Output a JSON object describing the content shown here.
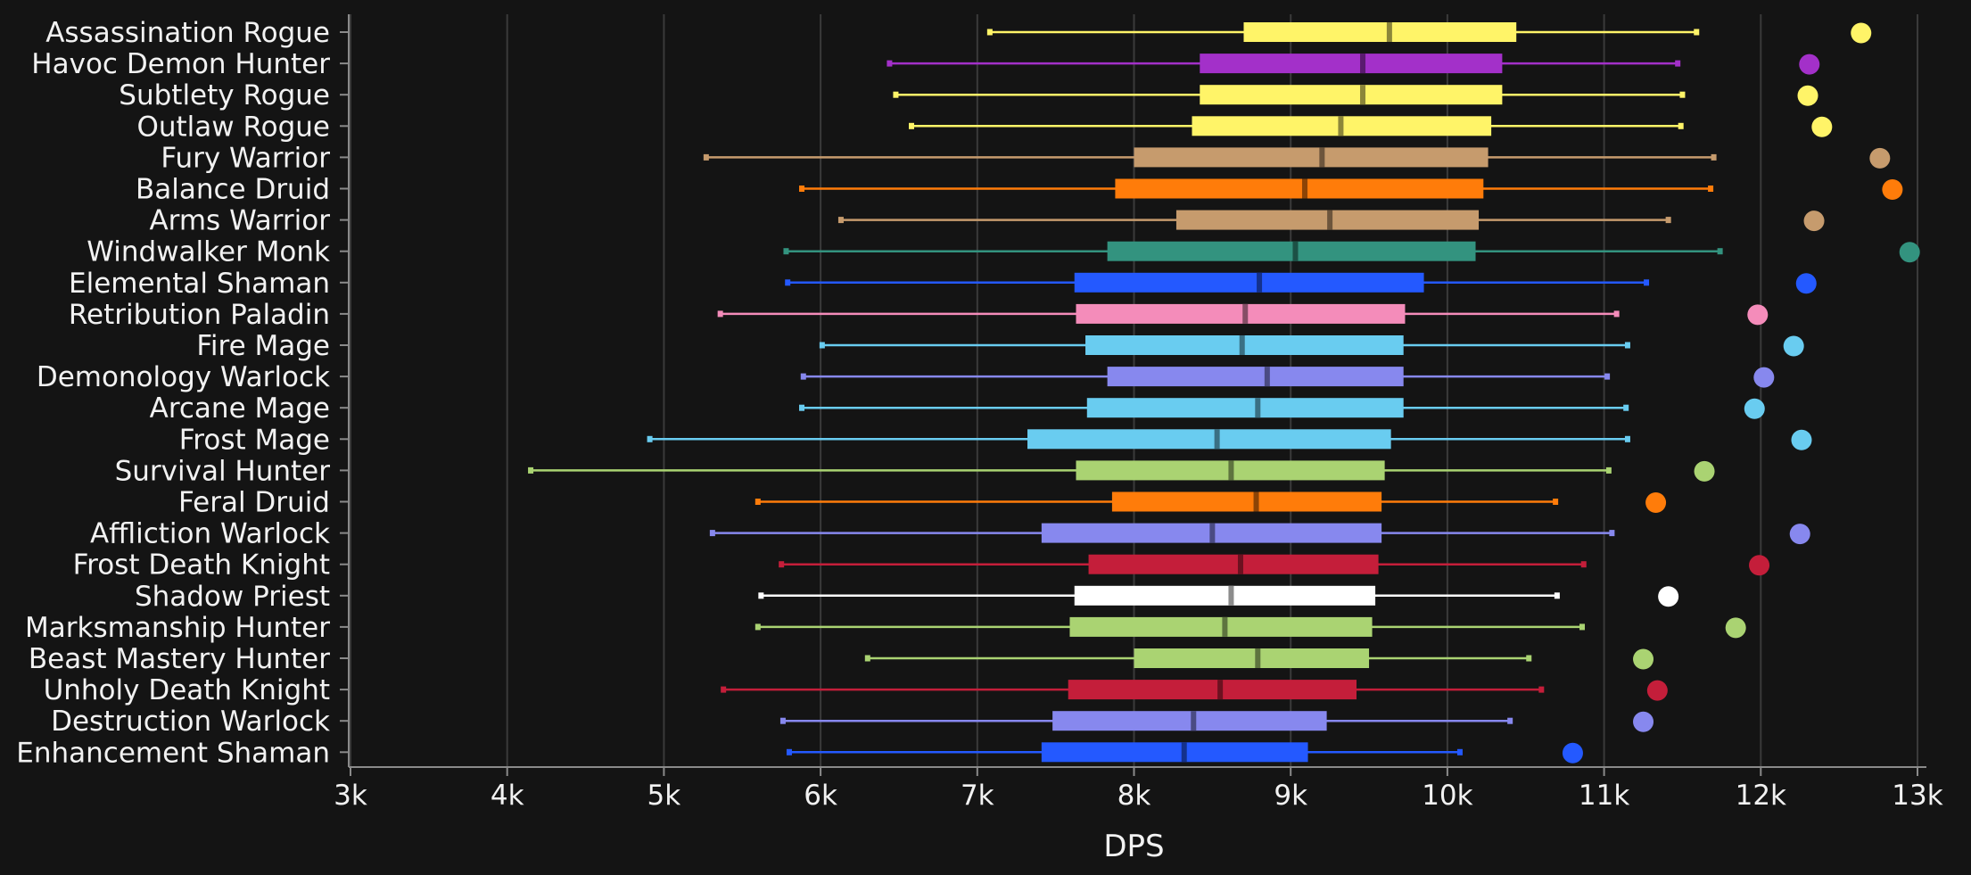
{
  "chart_data": {
    "type": "box",
    "xlabel": "DPS",
    "xlim": [
      3000,
      13000
    ],
    "x_ticks": [
      3000,
      4000,
      5000,
      6000,
      7000,
      8000,
      9000,
      10000,
      11000,
      12000,
      13000
    ],
    "x_tick_labels": [
      "3k",
      "4k",
      "5k",
      "6k",
      "7k",
      "8k",
      "9k",
      "10k",
      "11k",
      "12k",
      "13k"
    ],
    "grid": "vertical",
    "series": [
      {
        "name": "Assassination Rogue",
        "color": "#FFF468",
        "min": 7080,
        "q1": 8700,
        "median": 9630,
        "q3": 10440,
        "max": 11590,
        "outlier": 12640
      },
      {
        "name": "Havoc Demon Hunter",
        "color": "#A330C9",
        "min": 6440,
        "q1": 8420,
        "median": 9460,
        "q3": 10350,
        "max": 11470,
        "outlier": 12310
      },
      {
        "name": "Subtlety Rogue",
        "color": "#FFF468",
        "min": 6480,
        "q1": 8420,
        "median": 9460,
        "q3": 10350,
        "max": 11500,
        "outlier": 12300
      },
      {
        "name": "Outlaw Rogue",
        "color": "#FFF468",
        "min": 6580,
        "q1": 8370,
        "median": 9320,
        "q3": 10280,
        "max": 11490,
        "outlier": 12390
      },
      {
        "name": "Fury Warrior",
        "color": "#C69B6D",
        "min": 5270,
        "q1": 8000,
        "median": 9200,
        "q3": 10260,
        "max": 11700,
        "outlier": 12760
      },
      {
        "name": "Balance Druid",
        "color": "#FF7C0A",
        "min": 5880,
        "q1": 7880,
        "median": 9090,
        "q3": 10230,
        "max": 11680,
        "outlier": 12840
      },
      {
        "name": "Arms Warrior",
        "color": "#C69B6D",
        "min": 6130,
        "q1": 8270,
        "median": 9250,
        "q3": 10200,
        "max": 11410,
        "outlier": 12340
      },
      {
        "name": "Windwalker Monk",
        "color": "#33937F",
        "min": 5780,
        "q1": 7830,
        "median": 9030,
        "q3": 10180,
        "max": 11740,
        "outlier": 12950
      },
      {
        "name": "Elemental Shaman",
        "color": "#2459FF",
        "min": 5790,
        "q1": 7620,
        "median": 8800,
        "q3": 9850,
        "max": 11270,
        "outlier": 12290
      },
      {
        "name": "Retribution Paladin",
        "color": "#F48CBA",
        "min": 5360,
        "q1": 7630,
        "median": 8710,
        "q3": 9730,
        "max": 11080,
        "outlier": 11980
      },
      {
        "name": "Fire Mage",
        "color": "#69CCF0",
        "min": 6010,
        "q1": 7690,
        "median": 8690,
        "q3": 9720,
        "max": 11150,
        "outlier": 12210
      },
      {
        "name": "Demonology Warlock",
        "color": "#8788EE",
        "min": 5890,
        "q1": 7830,
        "median": 8850,
        "q3": 9720,
        "max": 11020,
        "outlier": 12020
      },
      {
        "name": "Arcane Mage",
        "color": "#69CCF0",
        "min": 5880,
        "q1": 7700,
        "median": 8790,
        "q3": 9720,
        "max": 11140,
        "outlier": 11960
      },
      {
        "name": "Frost Mage",
        "color": "#69CCF0",
        "min": 4910,
        "q1": 7320,
        "median": 8530,
        "q3": 9640,
        "max": 11150,
        "outlier": 12260
      },
      {
        "name": "Survival Hunter",
        "color": "#AAD372",
        "min": 4150,
        "q1": 7630,
        "median": 8620,
        "q3": 9600,
        "max": 11030,
        "outlier": 11640
      },
      {
        "name": "Feral Druid",
        "color": "#FF7C0A",
        "min": 5600,
        "q1": 7860,
        "median": 8780,
        "q3": 9580,
        "max": 10690,
        "outlier": 11330
      },
      {
        "name": "Affliction Warlock",
        "color": "#8788EE",
        "min": 5310,
        "q1": 7410,
        "median": 8500,
        "q3": 9580,
        "max": 11050,
        "outlier": 12250
      },
      {
        "name": "Frost Death Knight",
        "color": "#C41E3A",
        "min": 5750,
        "q1": 7710,
        "median": 8680,
        "q3": 9560,
        "max": 10870,
        "outlier": 11990
      },
      {
        "name": "Shadow Priest",
        "color": "#FFFFFF",
        "min": 5620,
        "q1": 7620,
        "median": 8620,
        "q3": 9540,
        "max": 10700,
        "outlier": 11410
      },
      {
        "name": "Marksmanship Hunter",
        "color": "#AAD372",
        "min": 5600,
        "q1": 7590,
        "median": 8580,
        "q3": 9520,
        "max": 10860,
        "outlier": 11840
      },
      {
        "name": "Beast Mastery Hunter",
        "color": "#AAD372",
        "min": 6300,
        "q1": 8000,
        "median": 8790,
        "q3": 9500,
        "max": 10520,
        "outlier": 11250
      },
      {
        "name": "Unholy Death Knight",
        "color": "#C41E3A",
        "min": 5380,
        "q1": 7580,
        "median": 8550,
        "q3": 9420,
        "max": 10600,
        "outlier": 11340
      },
      {
        "name": "Destruction Warlock",
        "color": "#8788EE",
        "min": 5760,
        "q1": 7480,
        "median": 8380,
        "q3": 9230,
        "max": 10400,
        "outlier": 11250
      },
      {
        "name": "Enhancement Shaman",
        "color": "#2459FF",
        "min": 5800,
        "q1": 7410,
        "median": 8320,
        "q3": 9110,
        "max": 10080,
        "outlier": 10800
      }
    ]
  }
}
